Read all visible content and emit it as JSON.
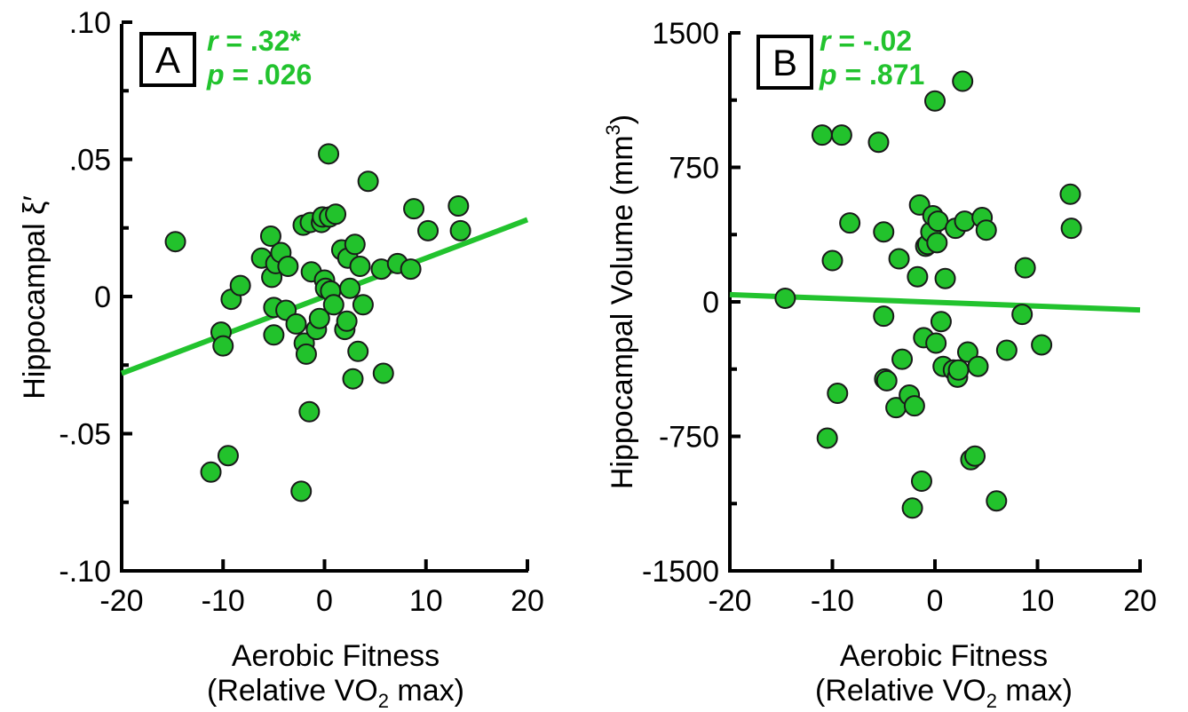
{
  "figure": {
    "colors": {
      "accent": "#22c32e",
      "point_fill": "#22c22c",
      "point_stroke": "#1a1a1a",
      "axis": "#000000"
    }
  },
  "chart_data": [
    {
      "panel_label": "A",
      "type": "scatter",
      "xlabel": "Aerobic Fitness",
      "xlabel_sub_prefix": "(Relative VO",
      "xlabel_sub_subscript": "2",
      "xlabel_sub_suffix": " max)",
      "ylabel": "Hippocampal ξ′",
      "xlim": [
        -20,
        20
      ],
      "ylim": [
        -0.1,
        0.1
      ],
      "x_ticks": [
        -20,
        -10,
        0,
        10,
        20
      ],
      "x_tick_labels": [
        "-20",
        "-10",
        "0",
        "10",
        "20"
      ],
      "y_ticks": [
        -0.1,
        -0.05,
        0,
        0.05,
        0.1
      ],
      "y_tick_labels": [
        "-.10",
        "-.05",
        "0",
        ".05",
        ".10"
      ],
      "stats": {
        "r_label": "r",
        "r_value": " = .32*",
        "p_label": "p",
        "p_value": " = .026"
      },
      "fit_line": {
        "x": [
          -20,
          20
        ],
        "y": [
          -0.028,
          0.028
        ]
      },
      "points": {
        "x": [
          -14.7,
          -11.2,
          -10.2,
          -10.0,
          -9.5,
          -9.2,
          -8.3,
          -6.2,
          -5.3,
          -5.2,
          -5.0,
          -5.0,
          -4.8,
          -4.3,
          -3.8,
          -3.6,
          -2.8,
          -2.3,
          -2.1,
          -2.0,
          -1.8,
          -1.5,
          -1.4,
          -1.3,
          -0.8,
          -0.5,
          -0.3,
          -0.2,
          0.0,
          0.1,
          0.4,
          0.5,
          0.6,
          0.9,
          1.1,
          1.7,
          2.0,
          2.2,
          2.3,
          2.5,
          2.8,
          3.0,
          3.3,
          3.5,
          3.8,
          4.3,
          5.6,
          5.8,
          7.2,
          8.5,
          8.8,
          10.2,
          13.2,
          13.4
        ],
        "y": [
          0.02,
          -0.064,
          -0.013,
          -0.018,
          -0.058,
          -0.001,
          0.004,
          0.014,
          0.022,
          0.007,
          -0.004,
          -0.014,
          0.012,
          0.016,
          -0.005,
          0.011,
          -0.01,
          -0.071,
          0.026,
          -0.017,
          -0.021,
          -0.042,
          0.027,
          0.009,
          -0.012,
          -0.008,
          0.027,
          0.029,
          0.006,
          0.003,
          0.052,
          0.029,
          0.002,
          -0.003,
          0.03,
          0.017,
          -0.012,
          -0.009,
          0.014,
          0.003,
          -0.03,
          0.019,
          -0.02,
          0.011,
          -0.003,
          0.042,
          0.01,
          -0.028,
          0.012,
          0.01,
          0.032,
          0.024,
          0.033,
          0.024
        ]
      }
    },
    {
      "panel_label": "B",
      "type": "scatter",
      "xlabel": "Aerobic Fitness",
      "xlabel_sub_prefix": "(Relative VO",
      "xlabel_sub_subscript": "2",
      "xlabel_sub_suffix": " max)",
      "ylabel_prefix": "Hippocampal Volume (mm",
      "ylabel_superscript": "3",
      "ylabel_suffix": ")",
      "xlim": [
        -20,
        20
      ],
      "ylim": [
        -1500,
        1500
      ],
      "x_ticks": [
        -20,
        -10,
        0,
        10,
        20
      ],
      "x_tick_labels": [
        "-20",
        "-10",
        "0",
        "10",
        "20"
      ],
      "y_ticks": [
        -1500,
        -750,
        0,
        750,
        1500
      ],
      "y_tick_labels": [
        "-1500",
        "-750",
        "0",
        "750",
        "1500"
      ],
      "stats": {
        "r_label": "r",
        "r_value": " = -.02",
        "p_label": "p",
        "p_value": " = .871"
      },
      "fit_line": {
        "x": [
          -20,
          20
        ],
        "y": [
          40,
          -45
        ]
      },
      "points": {
        "x": [
          -14.6,
          -11.0,
          -10.5,
          -10.0,
          -9.5,
          -9.1,
          -8.3,
          -5.5,
          -5.0,
          -5.0,
          -4.9,
          -4.7,
          -3.8,
          -3.5,
          -3.2,
          -2.5,
          -2.2,
          -2.0,
          -1.7,
          -1.5,
          -1.3,
          -1.1,
          -0.9,
          -0.7,
          -0.4,
          -0.2,
          0.0,
          0.1,
          0.2,
          0.3,
          0.6,
          0.8,
          1.0,
          1.8,
          2.0,
          2.2,
          2.3,
          2.7,
          2.9,
          3.2,
          3.5,
          3.9,
          4.2,
          4.6,
          5.0,
          6.0,
          7.0,
          8.5,
          8.8,
          10.4,
          13.2,
          13.3
        ],
        "y": [
          20,
          930,
          -760,
          230,
          -510,
          930,
          440,
          890,
          390,
          -80,
          -430,
          -440,
          -590,
          240,
          -320,
          -520,
          -1150,
          -580,
          140,
          540,
          -1000,
          -200,
          310,
          320,
          390,
          480,
          1120,
          -230,
          330,
          450,
          -110,
          -360,
          130,
          -380,
          410,
          -420,
          -380,
          1230,
          450,
          -280,
          -880,
          -860,
          -360,
          470,
          400,
          -1110,
          -270,
          -70,
          190,
          -240,
          600,
          410
        ]
      }
    }
  ]
}
